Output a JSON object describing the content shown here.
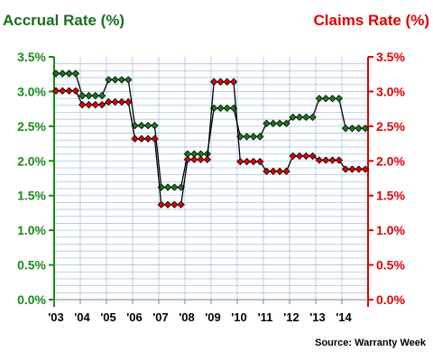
{
  "chart_data": {
    "type": "line",
    "left_title": "Accrual Rate (%)",
    "right_title": "Claims Rate (%)",
    "source": "Source: Warranty Week",
    "y_ticks": [
      "0.0%",
      "0.5%",
      "1.0%",
      "1.5%",
      "2.0%",
      "2.5%",
      "3.0%",
      "3.5%"
    ],
    "ylim": [
      0,
      3.5
    ],
    "x_tick_labels": [
      "'03",
      "'04",
      "'05",
      "'06",
      "'07",
      "'08",
      "'09",
      "'10",
      "'11",
      "'12",
      "'13",
      "'14"
    ],
    "colors": {
      "accrual_fill": "#1a7a1a",
      "accrual_title": "#1a6e1a",
      "claims_fill": "#e00000",
      "claims_title": "#e00000",
      "grid": "#a9c4e0",
      "left_axis": "#1a8a1a",
      "right_axis": "#e00000"
    },
    "series": [
      {
        "key": "accrual",
        "values": [
          3.26,
          3.26,
          3.26,
          3.26,
          2.94,
          2.94,
          2.94,
          2.94,
          3.17,
          3.17,
          3.17,
          3.17,
          2.51,
          2.51,
          2.51,
          2.51,
          1.62,
          1.62,
          1.62,
          1.62,
          2.1,
          2.1,
          2.1,
          2.1,
          2.76,
          2.76,
          2.76,
          2.76,
          2.35,
          2.35,
          2.35,
          2.35,
          2.54,
          2.54,
          2.54,
          2.54,
          2.63,
          2.63,
          2.63,
          2.63,
          2.9,
          2.9,
          2.9,
          2.9,
          2.47,
          2.47,
          2.47,
          2.47
        ]
      },
      {
        "key": "claims",
        "values": [
          3.01,
          3.01,
          3.01,
          3.01,
          2.81,
          2.81,
          2.81,
          2.81,
          2.85,
          2.85,
          2.85,
          2.85,
          2.32,
          2.32,
          2.32,
          2.32,
          1.37,
          1.37,
          1.37,
          1.37,
          2.02,
          2.02,
          2.02,
          2.02,
          3.14,
          3.14,
          3.14,
          3.14,
          1.99,
          1.99,
          1.99,
          1.99,
          1.85,
          1.85,
          1.85,
          1.85,
          2.07,
          2.07,
          2.07,
          2.07,
          2.01,
          2.01,
          2.01,
          2.01,
          1.88,
          1.88,
          1.88,
          1.88
        ]
      }
    ]
  }
}
